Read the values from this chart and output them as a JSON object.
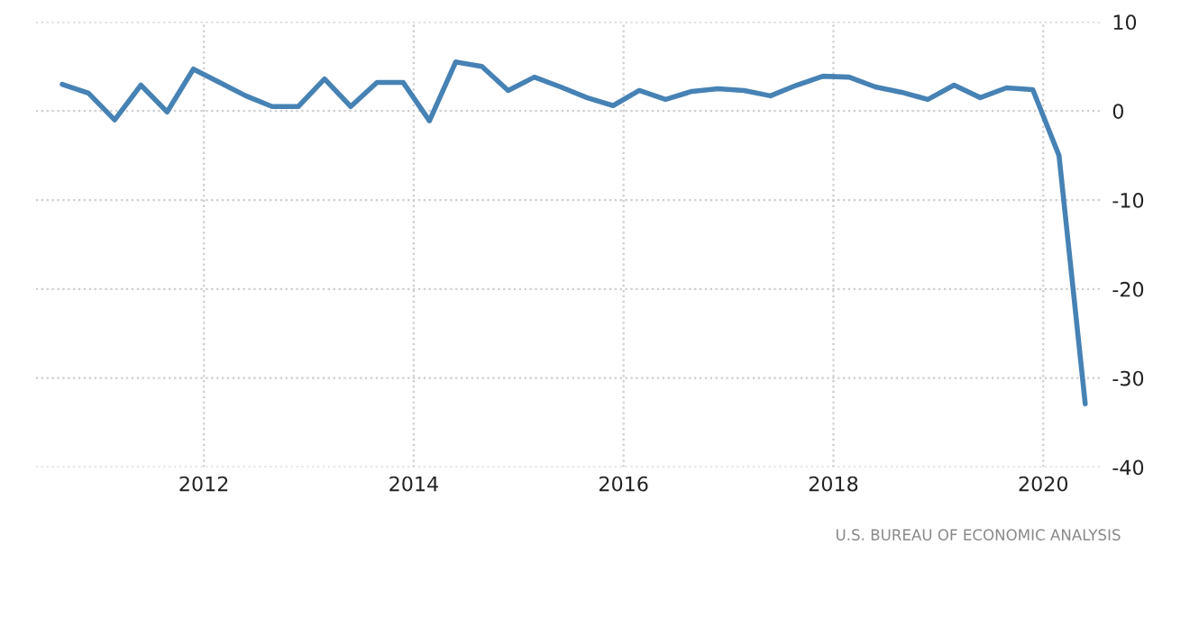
{
  "chart_data": {
    "type": "line",
    "x": [
      2010.65,
      2010.9,
      2011.15,
      2011.4,
      2011.65,
      2011.9,
      2012.15,
      2012.4,
      2012.65,
      2012.9,
      2013.15,
      2013.4,
      2013.65,
      2013.9,
      2014.15,
      2014.4,
      2014.65,
      2014.9,
      2015.15,
      2015.4,
      2015.65,
      2015.9,
      2016.15,
      2016.4,
      2016.65,
      2016.9,
      2017.15,
      2017.4,
      2017.65,
      2017.9,
      2018.15,
      2018.4,
      2018.65,
      2018.9,
      2019.15,
      2019.4,
      2019.65,
      2019.9,
      2020.15,
      2020.4
    ],
    "series": [
      {
        "color": "#4682b4",
        "values": [
          3.0,
          2.0,
          -1.0,
          2.9,
          -0.1,
          4.7,
          3.2,
          1.7,
          0.5,
          0.5,
          3.6,
          0.5,
          3.2,
          3.2,
          -1.1,
          5.5,
          5.0,
          2.3,
          3.8,
          2.7,
          1.5,
          0.6,
          2.3,
          1.3,
          2.2,
          2.5,
          2.3,
          1.7,
          2.9,
          3.9,
          3.8,
          2.7,
          2.1,
          1.3,
          2.9,
          1.5,
          2.6,
          2.4,
          -5.0,
          -32.9
        ]
      }
    ],
    "xlim": [
      2010.4,
      2020.57
    ],
    "xticks": [
      2012,
      2014,
      2016,
      2018,
      2020
    ],
    "ylim": [
      -40,
      10
    ],
    "yticks": [
      10,
      0,
      -10,
      -20,
      -30,
      -40
    ],
    "grid": true,
    "line_style": "solid",
    "marker": "none",
    "annotations": [
      "U.S. BUREAU OF ECONOMIC ANALYSIS"
    ]
  }
}
